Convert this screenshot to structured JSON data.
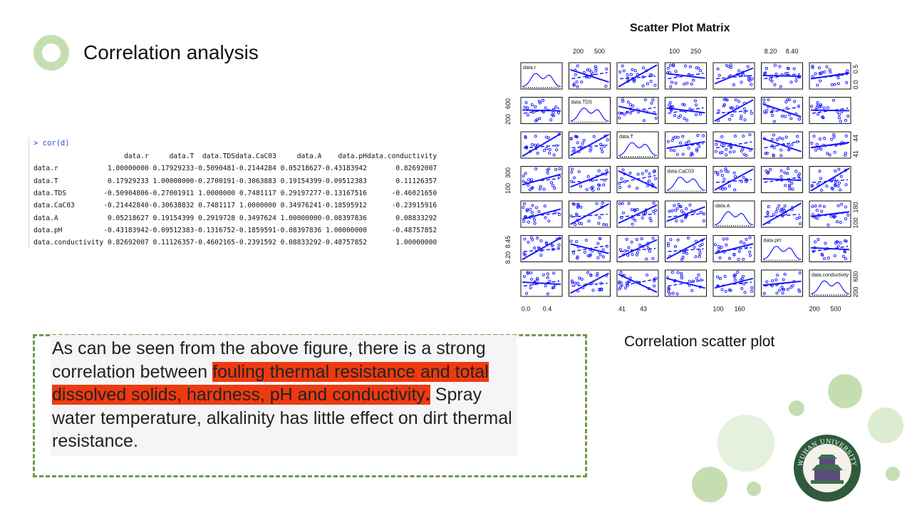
{
  "slide": {
    "title": "Correlation analysis",
    "accent_color": "#c5deb1"
  },
  "console": {
    "prompt": "> cor(d)",
    "columns": [
      "",
      "data.r",
      "data.T",
      "data.TDS",
      "data.CaC03",
      "data.A",
      "data.pH",
      "data.conductivity"
    ],
    "rows": [
      [
        "data.r",
        "1.00000000",
        "0.17929233",
        "-0.5090481",
        "-0.2144284",
        "0.05218627",
        "-0.43183942",
        "0.82692007"
      ],
      [
        "data.T",
        "0.17929233",
        "1.00000000",
        "-0.2700191",
        "-0.3063883",
        "0.19154399",
        "-0.09512383",
        "0.11126357"
      ],
      [
        "data.TDS",
        "-0.50904806",
        "-0.27001911",
        "1.0000000",
        "0.7481117",
        "0.29197277",
        "-0.13167516",
        "-0.46021650"
      ],
      [
        "data.CaC03",
        "-0.21442840",
        "-0.30638832",
        "0.7481117",
        "1.0000000",
        "0.34976241",
        "-0.18595912",
        "-0.23915916"
      ],
      [
        "data.A",
        "0.05218627",
        "0.19154399",
        "0.2919728",
        "0.3497624",
        "1.00000000",
        "-0.08397836",
        "0.08833292"
      ],
      [
        "data.pH",
        "-0.43183942",
        "-0.09512383",
        "-0.1316752",
        "-0.1859591",
        "-0.08397836",
        "1.00000000",
        "-0.48757852"
      ],
      [
        "data.conductivity",
        "0.82692007",
        "0.11126357",
        "-0.4602165",
        "-0.2391592",
        "0.08833292",
        "-0.48757852",
        "1.00000000"
      ]
    ]
  },
  "chart_data": {
    "type": "scatter",
    "title": "Scatter Plot Matrix",
    "variables": [
      "data.r",
      "data.TDS",
      "data.T",
      "data.CaC03",
      "data.A",
      "data.pH",
      "data.conductivity"
    ],
    "top_axis_ticks": [
      {
        "panel": 1,
        "labels": [
          "200",
          "500"
        ]
      },
      {
        "panel": 3,
        "labels": [
          "100",
          "250"
        ]
      },
      {
        "panel": 5,
        "labels": [
          "8.20",
          "8.40"
        ]
      }
    ],
    "bottom_axis_ticks": [
      {
        "panel": 0,
        "labels": [
          "0.0",
          "0.4"
        ]
      },
      {
        "panel": 2,
        "labels": [
          "41",
          "43"
        ]
      },
      {
        "panel": 4,
        "labels": [
          "100",
          "160"
        ]
      },
      {
        "panel": 6,
        "labels": [
          "200",
          "500"
        ]
      }
    ],
    "left_axis_ticks": [
      {
        "panel": 1,
        "labels": [
          "200",
          "600"
        ]
      },
      {
        "panel": 3,
        "labels": [
          "100",
          "300"
        ]
      },
      {
        "panel": 5,
        "labels": [
          "8.20",
          "8.45"
        ]
      }
    ],
    "right_axis_ticks": [
      {
        "panel": 0,
        "labels": [
          "0.0",
          "0.5"
        ]
      },
      {
        "panel": 2,
        "labels": [
          "41",
          "44"
        ]
      },
      {
        "panel": 4,
        "labels": [
          "100",
          "180"
        ]
      },
      {
        "panel": 6,
        "labels": [
          "200",
          "600"
        ]
      }
    ],
    "point_color": "#1a1aff"
  },
  "caption": "Correlation scatter plot",
  "textbox": {
    "before": "As can be seen from the above figure, there is a strong correlation between ",
    "highlight": "fouling thermal resistance and total dissolved solids, hardness, pH and conductivity",
    "period": ".",
    "after": " Spray water temperature, alkalinity has little effect on dirt thermal resistance.",
    "highlight_color": "#ee3a10",
    "border_color": "#6f9a46"
  },
  "logo": {
    "text": "WUHAN UNIVERSITY"
  }
}
